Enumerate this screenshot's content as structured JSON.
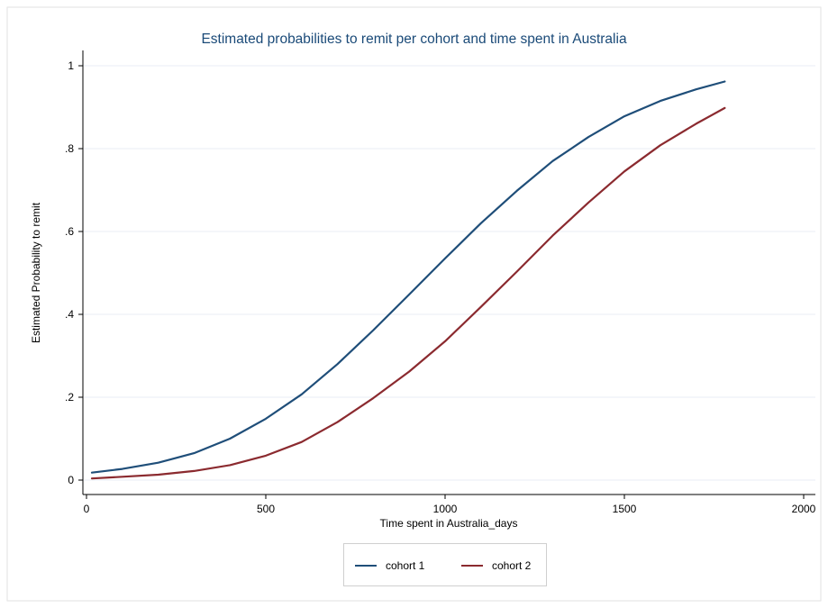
{
  "chart_data": {
    "type": "line",
    "title": "Estimated probabilities to remit per cohort and time spent in Australia",
    "xlabel": "Time spent in Australia_days",
    "ylabel": "Estimated Probability to remit",
    "xlim": [
      0,
      2000
    ],
    "ylim": [
      0,
      1
    ],
    "xticks": [
      0,
      500,
      1000,
      1500,
      2000
    ],
    "xtick_labels": [
      "0",
      "500",
      "1000",
      "1500",
      "2000"
    ],
    "yticks": [
      0,
      0.2,
      0.4,
      0.6,
      0.8,
      1
    ],
    "ytick_labels": [
      "0",
      ".2",
      ".4",
      ".6",
      ".8",
      "1"
    ],
    "grid": true,
    "legend_position": "bottom",
    "series": [
      {
        "name": "cohort 1",
        "color": "#1f4e79",
        "x": [
          15,
          100,
          200,
          300,
          400,
          500,
          600,
          700,
          800,
          900,
          1000,
          1100,
          1200,
          1300,
          1400,
          1500,
          1600,
          1700,
          1780
        ],
        "y": [
          0.018,
          0.027,
          0.042,
          0.065,
          0.1,
          0.148,
          0.207,
          0.28,
          0.362,
          0.448,
          0.535,
          0.62,
          0.698,
          0.77,
          0.828,
          0.878,
          0.915,
          0.943,
          0.962
        ]
      },
      {
        "name": "cohort 2",
        "color": "#8b2a2f",
        "x": [
          15,
          100,
          200,
          300,
          400,
          500,
          600,
          700,
          800,
          900,
          1000,
          1100,
          1200,
          1300,
          1400,
          1500,
          1600,
          1700,
          1780
        ],
        "y": [
          0.004,
          0.008,
          0.013,
          0.022,
          0.036,
          0.059,
          0.092,
          0.14,
          0.198,
          0.262,
          0.335,
          0.418,
          0.503,
          0.59,
          0.67,
          0.745,
          0.808,
          0.86,
          0.898
        ]
      }
    ]
  }
}
